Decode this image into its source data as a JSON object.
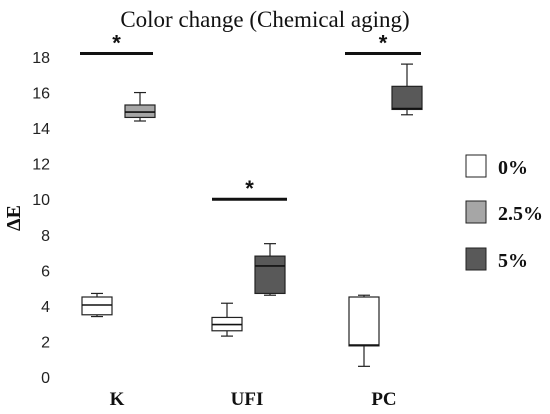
{
  "chart_data": {
    "type": "box",
    "title": "Color change (Chemical aging)",
    "ylabel": "ΔE",
    "xlabel": "",
    "ylim": [
      0,
      18
    ],
    "yticks": [
      0,
      2,
      4,
      6,
      8,
      10,
      12,
      14,
      16,
      18
    ],
    "categories": [
      "K",
      "UFI",
      "PC"
    ],
    "grid": false,
    "legend_position": "right",
    "series": [
      {
        "name": "0%",
        "color": "#ffffff",
        "boxes": [
          {
            "category": "K",
            "min": 3.4,
            "q1": 3.5,
            "median": 4.05,
            "q3": 4.5,
            "max": 4.7
          },
          {
            "category": "UFI",
            "min": 2.3,
            "q1": 2.6,
            "median": 2.95,
            "q3": 3.35,
            "max": 4.15
          },
          {
            "category": "PC",
            "min": 0.6,
            "q1": 1.75,
            "median": 1.8,
            "q3": 4.5,
            "max": 4.6
          }
        ]
      },
      {
        "name": "2.5%",
        "color": "#a6a6a6",
        "boxes": [
          {
            "category": "K",
            "min": 14.4,
            "q1": 14.6,
            "median": 14.9,
            "q3": 15.3,
            "max": 16.0
          }
        ]
      },
      {
        "name": "5%",
        "color": "#595959",
        "boxes": [
          {
            "category": "UFI",
            "min": 4.6,
            "q1": 4.7,
            "median": 6.25,
            "q3": 6.8,
            "max": 7.5
          },
          {
            "category": "PC",
            "min": 14.75,
            "q1": 15.05,
            "median": 15.1,
            "q3": 16.35,
            "max": 17.6
          }
        ]
      }
    ],
    "significance": [
      {
        "label": "*",
        "y": 18.2,
        "from": "K-0%",
        "to": "K-2.5%"
      },
      {
        "label": "*",
        "y": 10.0,
        "from": "UFI-0%",
        "to": "UFI-5%"
      },
      {
        "label": "*",
        "y": 18.2,
        "from": "PC-0%",
        "to": "PC-5%"
      }
    ]
  }
}
